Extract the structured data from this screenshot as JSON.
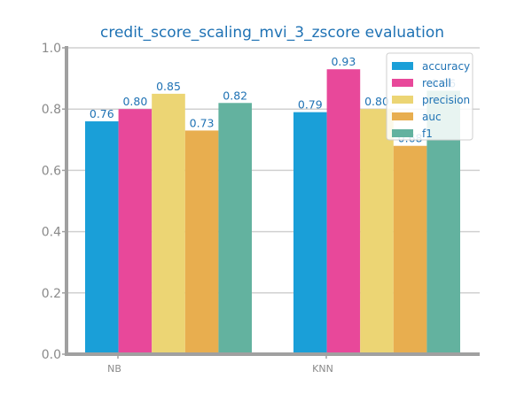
{
  "chart_data": {
    "type": "bar",
    "title": "credit_score_scaling_mvi_3_zscore evaluation",
    "xlabel": "",
    "ylabel": "",
    "categories": [
      "NB",
      "KNN"
    ],
    "series": [
      {
        "name": "accuracy",
        "values": [
          0.76,
          0.79
        ],
        "labels": [
          "0.76",
          "0.79"
        ],
        "color": "#1a9fd8"
      },
      {
        "name": "recall",
        "values": [
          0.8,
          0.93
        ],
        "labels": [
          "0.80",
          "0.93"
        ],
        "color": "#e8489a"
      },
      {
        "name": "precision",
        "values": [
          0.85,
          0.8
        ],
        "labels": [
          "0.85",
          "0.80"
        ],
        "color": "#ecd574"
      },
      {
        "name": "auc",
        "values": [
          0.73,
          0.68
        ],
        "labels": [
          "0.73",
          "0.68"
        ],
        "color": "#e8ae4f"
      },
      {
        "name": "f1",
        "values": [
          0.82,
          0.86
        ],
        "labels": [
          "0.82",
          "0.86"
        ],
        "color": "#63b29f"
      }
    ],
    "ylim": [
      0,
      1.0
    ],
    "yticks": [
      "0.0",
      "0.2",
      "0.4",
      "0.6",
      "0.8",
      "1.0"
    ],
    "grid": true,
    "legend": "top-right"
  },
  "colors": {
    "title": "#1f72b4",
    "data_label": "#1f72b4",
    "legend_text": "#1f72b4",
    "tick_text": "#8a8a8a",
    "axis": "#a0a0a0",
    "grid": "#d0d0d0"
  }
}
